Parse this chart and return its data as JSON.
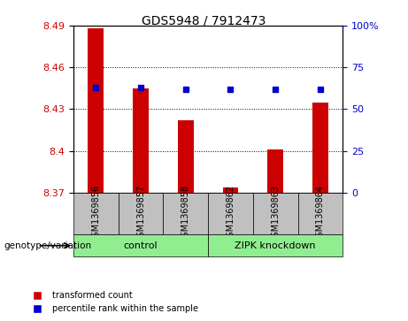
{
  "title": "GDS5948 / 7912473",
  "samples": [
    "GSM1369856",
    "GSM1369857",
    "GSM1369858",
    "GSM1369862",
    "GSM1369863",
    "GSM1369864"
  ],
  "red_values": [
    8.488,
    8.445,
    8.422,
    8.374,
    8.401,
    8.435
  ],
  "blue_values": [
    63,
    63,
    62,
    62,
    62,
    62
  ],
  "ylim_left": [
    8.37,
    8.49
  ],
  "ylim_right": [
    0,
    100
  ],
  "yticks_left": [
    8.37,
    8.4,
    8.43,
    8.46,
    8.49
  ],
  "yticks_right": [
    0,
    25,
    50,
    75,
    100
  ],
  "ytick_labels_right": [
    "0",
    "25",
    "50",
    "75",
    "100%"
  ],
  "bar_color": "#cc0000",
  "dot_color": "#0000cc",
  "group_box_color": "#c0c0c0",
  "group_green": "#90EE90",
  "group1_label": "control",
  "group2_label": "ZIPK knockdown",
  "genotype_label": "genotype/variation",
  "legend_red": "transformed count",
  "legend_blue": "percentile rank within the sample"
}
